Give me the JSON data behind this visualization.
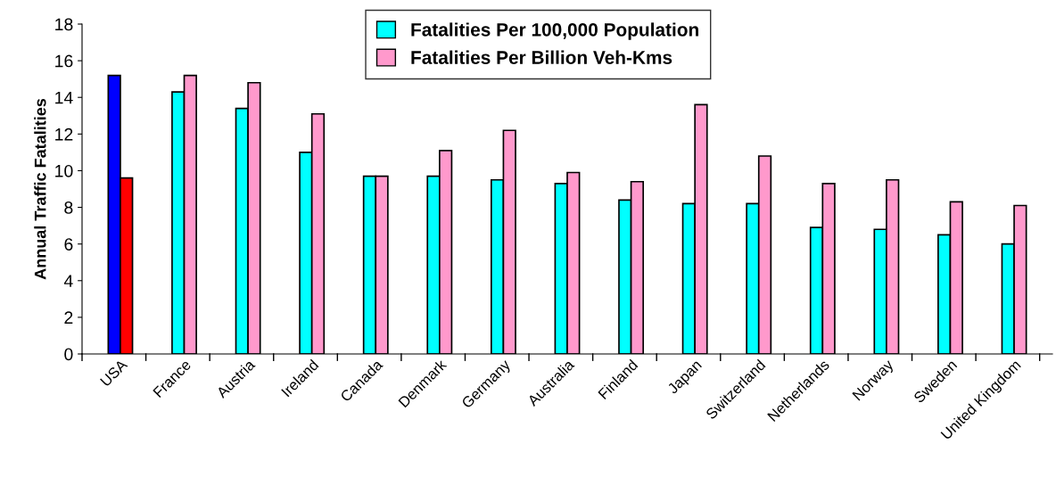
{
  "chart_data": {
    "type": "bar",
    "ylabel": "Annual Traffic Fatalities",
    "categories": [
      "USA",
      "France",
      "Austria",
      "Ireland",
      "Canada",
      "Denmark",
      "Germany",
      "Australia",
      "Finland",
      "Japan",
      "Switzerland",
      "Netherlands",
      "Norway",
      "Sweden",
      "United Kingdom"
    ],
    "series": [
      {
        "name": "Fatalities Per 100,000 Population",
        "color": "#00ffff",
        "colors": [
          "#0000ff",
          "#00ffff",
          "#00ffff",
          "#00ffff",
          "#00ffff",
          "#00ffff",
          "#00ffff",
          "#00ffff",
          "#00ffff",
          "#00ffff",
          "#00ffff",
          "#00ffff",
          "#00ffff",
          "#00ffff",
          "#00ffff"
        ],
        "values": [
          15.2,
          14.3,
          13.4,
          11.0,
          9.7,
          9.7,
          9.5,
          9.3,
          8.4,
          8.2,
          8.2,
          6.9,
          6.8,
          6.5,
          6.0
        ]
      },
      {
        "name": "Fatalities Per Billion Veh-Kms",
        "color": "#ff99cc",
        "colors": [
          "#ff0000",
          "#ff99cc",
          "#ff99cc",
          "#ff99cc",
          "#ff99cc",
          "#ff99cc",
          "#ff99cc",
          "#ff99cc",
          "#ff99cc",
          "#ff99cc",
          "#ff99cc",
          "#ff99cc",
          "#ff99cc",
          "#ff99cc",
          "#ff99cc"
        ],
        "values": [
          9.6,
          15.2,
          14.8,
          13.1,
          9.7,
          11.1,
          12.2,
          9.9,
          9.4,
          13.6,
          10.8,
          9.3,
          9.5,
          8.3,
          8.1
        ]
      }
    ],
    "ylim": [
      0,
      18
    ],
    "yticks": [
      0,
      2,
      4,
      6,
      8,
      10,
      12,
      14,
      16,
      18
    ],
    "grid": false,
    "legend": "top"
  }
}
